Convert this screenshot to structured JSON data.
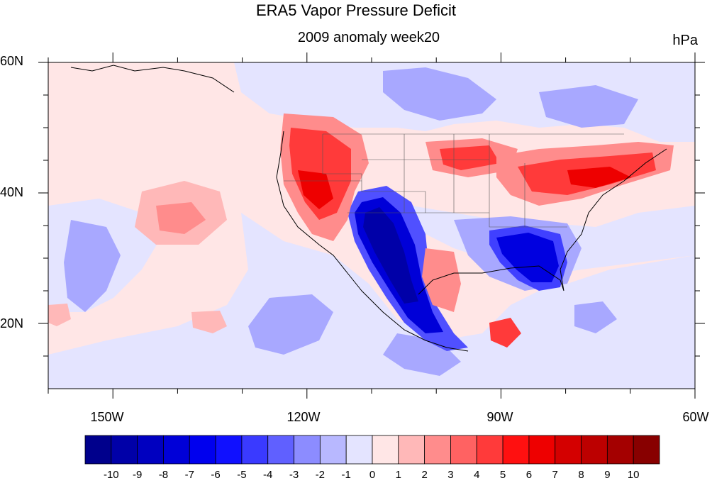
{
  "title": "ERA5 Vapor Pressure Deficit",
  "subtitle": "2009 anomaly week20",
  "units": "hPa",
  "map": {
    "lon_range": [
      -160,
      -60
    ],
    "lat_range": [
      10,
      60
    ],
    "lat_ticks": [
      "60N",
      "40N",
      "20N"
    ],
    "lon_ticks": [
      "150W",
      "120W",
      "90W",
      "60W"
    ]
  },
  "colorbar": {
    "levels": [
      "-10",
      "-9",
      "-8",
      "-7",
      "-6",
      "-5",
      "-4",
      "-3",
      "-2",
      "-1",
      "0",
      "1",
      "2",
      "3",
      "4",
      "5",
      "6",
      "7",
      "8",
      "9",
      "10"
    ],
    "colors": [
      "#00008c",
      "#0000a8",
      "#0000c0",
      "#0000d8",
      "#0000ee",
      "#1010ff",
      "#3a3aff",
      "#6060ff",
      "#8c8cff",
      "#b8b8ff",
      "#e4e4ff",
      "#ffe6e6",
      "#ffb8b8",
      "#ff8c8c",
      "#ff6262",
      "#ff3a3a",
      "#ff1010",
      "#ee0000",
      "#d40000",
      "#bc0000",
      "#a40000",
      "#880000"
    ]
  }
}
